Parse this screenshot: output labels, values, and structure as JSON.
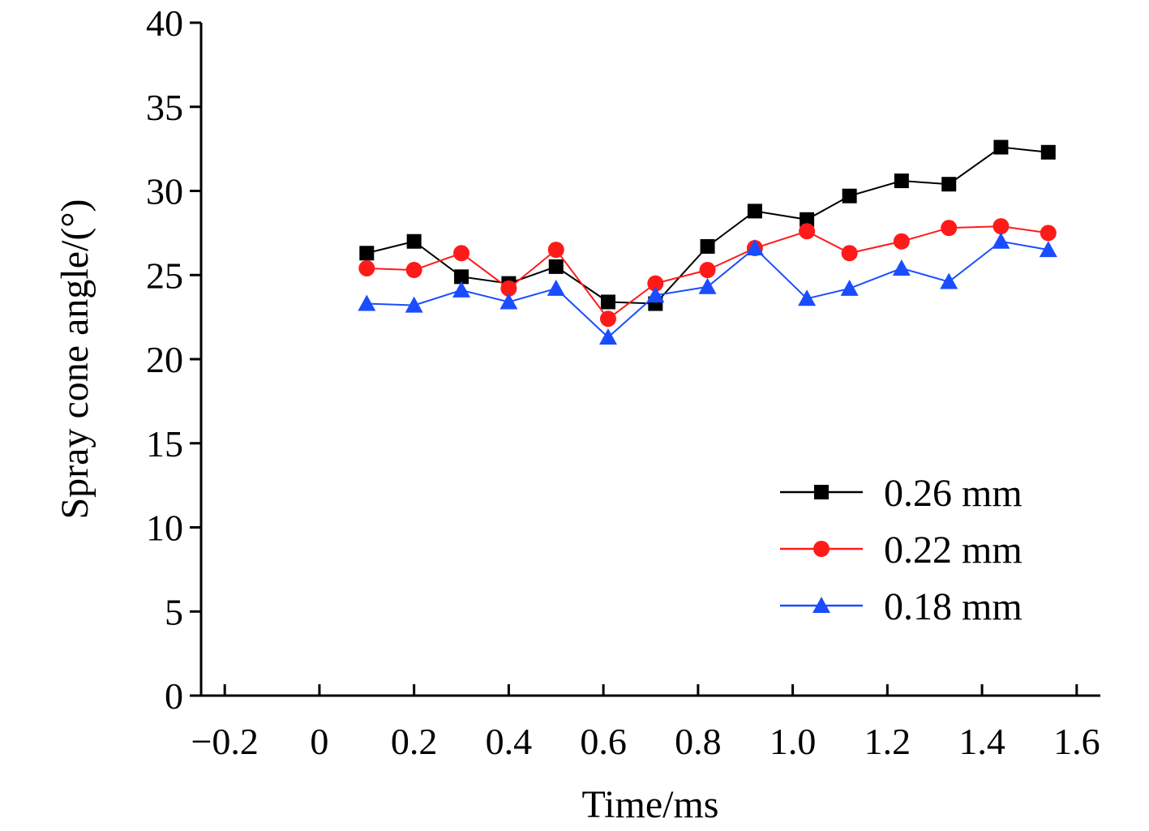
{
  "chart_data": {
    "type": "line",
    "title": "",
    "xlabel": "Time/ms",
    "ylabel": "Spray cone angle/(°)",
    "xlim": [
      -0.25,
      1.65
    ],
    "ylim": [
      0,
      40
    ],
    "xticks": [
      -0.2,
      0,
      0.2,
      0.4,
      0.6,
      0.8,
      1.0,
      1.2,
      1.4,
      1.6
    ],
    "xtick_labels": [
      "−0.2",
      "0",
      "0.2",
      "0.4",
      "0.6",
      "0.8",
      "1.0",
      "1.2",
      "1.4",
      "1.6"
    ],
    "yticks": [
      0,
      5,
      10,
      15,
      20,
      25,
      30,
      35,
      40
    ],
    "ytick_labels": [
      "0",
      "5",
      "10",
      "15",
      "20",
      "25",
      "30",
      "35",
      "40"
    ],
    "grid": false,
    "legend_position": "bottom-right",
    "x": [
      0.1,
      0.2,
      0.3,
      0.4,
      0.5,
      0.61,
      0.71,
      0.82,
      0.92,
      1.03,
      1.12,
      1.23,
      1.33,
      1.44,
      1.54
    ],
    "series": [
      {
        "name": "0.26 mm",
        "color": "#000000",
        "marker": "square",
        "values": [
          26.3,
          27.0,
          24.9,
          24.5,
          25.5,
          23.4,
          23.3,
          26.7,
          28.8,
          28.3,
          29.7,
          30.6,
          30.4,
          32.6,
          32.3
        ]
      },
      {
        "name": "0.22 mm",
        "color": "#ff1a1a",
        "marker": "circle",
        "values": [
          25.4,
          25.3,
          26.3,
          24.2,
          26.5,
          22.4,
          24.5,
          25.3,
          26.6,
          27.6,
          26.3,
          27.0,
          27.8,
          27.9,
          27.5
        ]
      },
      {
        "name": "0.18 mm",
        "color": "#1a4dff",
        "marker": "triangle",
        "values": [
          23.3,
          23.2,
          24.1,
          23.4,
          24.2,
          21.3,
          23.8,
          24.3,
          26.6,
          23.6,
          24.2,
          25.4,
          24.6,
          27.0,
          26.5
        ]
      }
    ]
  }
}
